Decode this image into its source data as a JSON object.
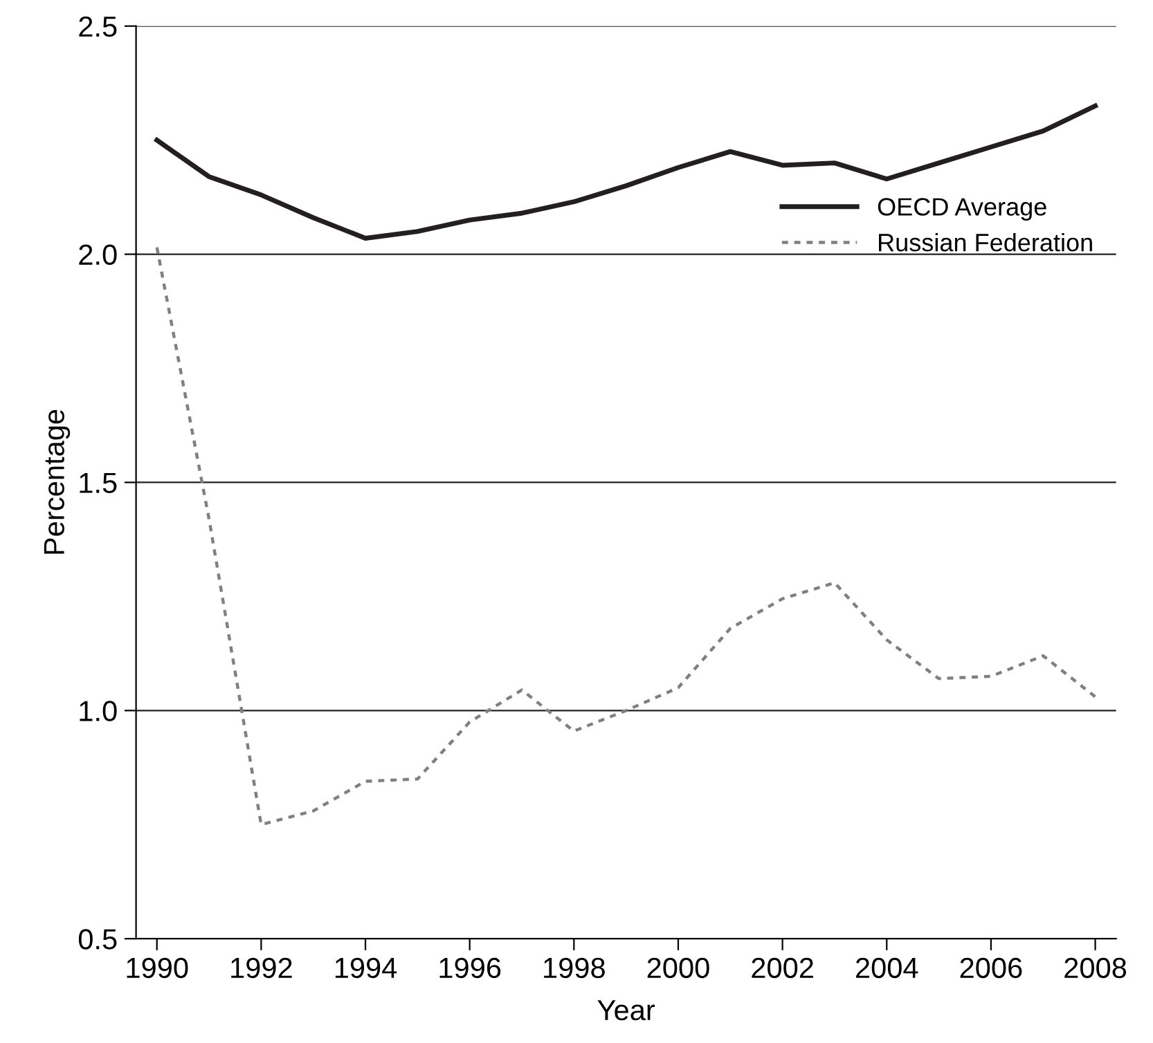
{
  "chart_data": {
    "type": "line",
    "xlabel": "Year",
    "ylabel": "Percentage",
    "x": [
      1990,
      1991,
      1992,
      1993,
      1994,
      1995,
      1996,
      1997,
      1998,
      1999,
      2000,
      2001,
      2002,
      2003,
      2004,
      2005,
      2006,
      2007,
      2008
    ],
    "series": [
      {
        "name": "OECD Average",
        "color": "#231f20",
        "line_style": "solid",
        "values": [
          2.25,
          2.17,
          2.13,
          2.08,
          2.035,
          2.05,
          2.075,
          2.09,
          2.115,
          2.15,
          2.19,
          2.225,
          2.195,
          2.2,
          2.165,
          2.2,
          2.235,
          2.27,
          2.325
        ]
      },
      {
        "name": "Russian Federation",
        "color": "#808080",
        "line_style": "dotted",
        "values": [
          2.015,
          1.42,
          0.75,
          0.78,
          0.845,
          0.85,
          0.975,
          1.045,
          0.955,
          1.0,
          1.05,
          1.18,
          1.245,
          1.28,
          1.155,
          1.07,
          1.075,
          1.12,
          1.03
        ]
      }
    ],
    "xlim": [
      1989.6,
      2008.4
    ],
    "xticks": [
      1990,
      1992,
      1994,
      1996,
      1998,
      2000,
      2002,
      2004,
      2006,
      2008
    ],
    "ylim": [
      0.5,
      2.5
    ],
    "yticks": [
      0.5,
      {
        "value": 1.0,
        "label": "1.0"
      },
      1.5,
      {
        "value": 2.0,
        "label": "2.0"
      },
      2.5
    ],
    "grid": "y",
    "legend": "center right",
    "marker": "none"
  }
}
